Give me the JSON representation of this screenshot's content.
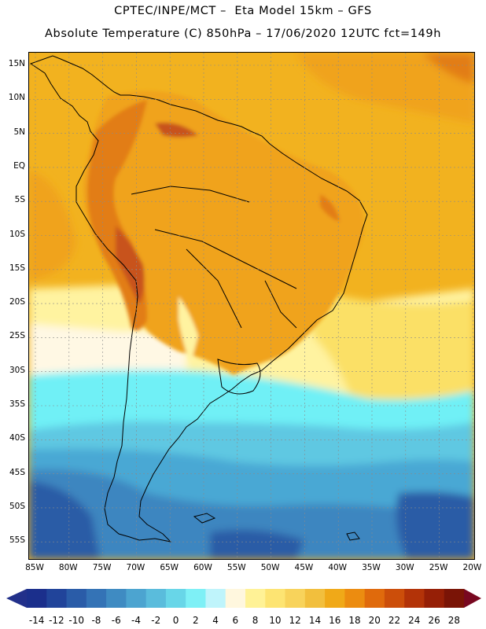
{
  "header": {
    "line1": "CPTEC/INPE/MCT –  Eta Model 15km – GFS",
    "line2": "Absolute Temperature (C) 850hPa – 17/06/2020 12UTC fct=149h"
  },
  "map": {
    "lat_labels": [
      "15N",
      "10N",
      "5N",
      "EQ",
      "5S",
      "10S",
      "15S",
      "20S",
      "25S",
      "30S",
      "35S",
      "40S",
      "45S",
      "50S",
      "55S"
    ],
    "lon_labels": [
      "85W",
      "80W",
      "75W",
      "70W",
      "65W",
      "60W",
      "55W",
      "50W",
      "45W",
      "40W",
      "35W",
      "30W",
      "25W",
      "20W"
    ]
  },
  "colorbar": {
    "labels": [
      "-14",
      "-12",
      "-10",
      "-8",
      "-6",
      "-4",
      "-2",
      "0",
      "2",
      "4",
      "6",
      "8",
      "10",
      "12",
      "14",
      "16",
      "18",
      "20",
      "22",
      "24",
      "26",
      "28"
    ],
    "colors": [
      "#1b2f8c",
      "#21449a",
      "#2a5ca8",
      "#3473b6",
      "#3f8bc2",
      "#4ca4d0",
      "#5abcdc",
      "#68d6e8",
      "#7ef0f6",
      "#bff4fb",
      "#fff7de",
      "#fff296",
      "#fde472",
      "#f8d35b",
      "#f2bf3d",
      "#f0a918",
      "#ec8c10",
      "#e06a0c",
      "#cc4e0a",
      "#b33308",
      "#961f06",
      "#7a1406"
    ],
    "under_color": "#22308a",
    "over_color": "#780820"
  },
  "field_colors": {
    "ocean_north": "#f2b21f",
    "land_warm": "#f0a31a",
    "hot": "#e27d14",
    "hotter": "#c8521a",
    "yellow": "#fbe066",
    "pale_yellow": "#fff3a0",
    "cream": "#fff8e4",
    "cyan": "#6ff0f6",
    "light_blue": "#5ec8e2",
    "mid_blue": "#4aa8d4",
    "blue": "#3e86c0",
    "deep_blue": "#2c5ca6"
  }
}
